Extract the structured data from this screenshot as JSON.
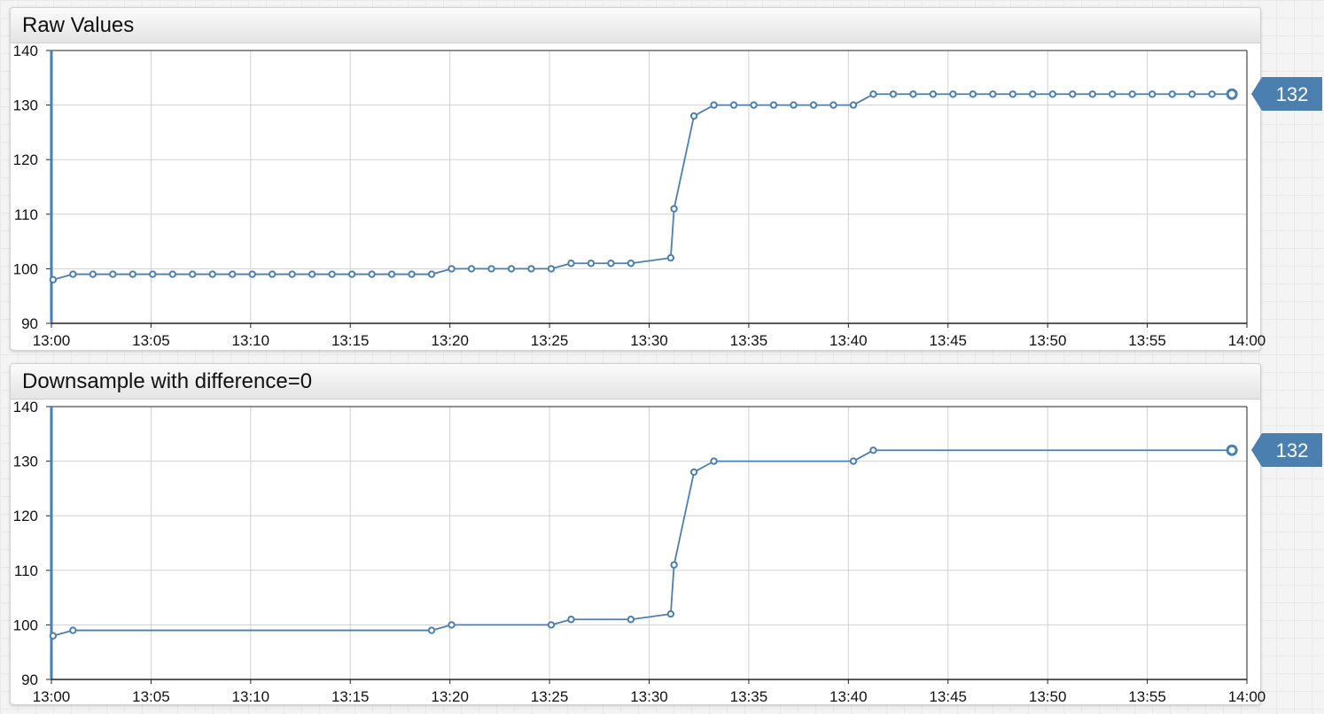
{
  "widgets": [
    {
      "title": "Raw Values",
      "last_value_label": "132",
      "chart_data": {
        "type": "line",
        "title": "Raw Values",
        "xlabel": "",
        "ylabel": "",
        "xlim": [
          "13:00",
          "14:00"
        ],
        "ylim": [
          90,
          140
        ],
        "x_ticks": [
          "13:00",
          "13:05",
          "13:10",
          "13:15",
          "13:20",
          "13:25",
          "13:30",
          "13:35",
          "13:40",
          "13:45",
          "13:50",
          "13:55",
          "14:00"
        ],
        "y_ticks": [
          "90",
          "100",
          "110",
          "120",
          "130",
          "140"
        ],
        "grid": true,
        "color": "#4a7fb0",
        "series": [
          {
            "x": [
              "13:00:05",
              "13:01:05",
              "13:02:05",
              "13:03:05",
              "13:04:05",
              "13:05:05",
              "13:06:05",
              "13:07:05",
              "13:08:05",
              "13:09:05",
              "13:10:05",
              "13:11:05",
              "13:12:05",
              "13:13:05",
              "13:14:05",
              "13:15:05",
              "13:16:05",
              "13:17:05",
              "13:18:05",
              "13:19:05",
              "13:20:05",
              "13:21:05",
              "13:22:05",
              "13:23:05",
              "13:24:05",
              "13:25:05",
              "13:26:05",
              "13:27:05",
              "13:28:05",
              "13:29:05",
              "13:31:05",
              "13:31:15",
              "13:32:15",
              "13:33:15",
              "13:34:15",
              "13:35:15",
              "13:36:15",
              "13:37:15",
              "13:38:15",
              "13:39:15",
              "13:40:15",
              "13:41:15",
              "13:42:15",
              "13:43:15",
              "13:44:15",
              "13:45:15",
              "13:46:15",
              "13:47:15",
              "13:48:15",
              "13:49:15",
              "13:50:15",
              "13:51:15",
              "13:52:15",
              "13:53:15",
              "13:54:15",
              "13:55:15",
              "13:56:15",
              "13:57:15",
              "13:58:15",
              "13:59:15"
            ],
            "values": [
              98,
              99,
              99,
              99,
              99,
              99,
              99,
              99,
              99,
              99,
              99,
              99,
              99,
              99,
              99,
              99,
              99,
              99,
              99,
              99,
              100,
              100,
              100,
              100,
              100,
              100,
              101,
              101,
              101,
              101,
              102,
              111,
              128,
              130,
              130,
              130,
              130,
              130,
              130,
              130,
              130,
              132,
              132,
              132,
              132,
              132,
              132,
              132,
              132,
              132,
              132,
              132,
              132,
              132,
              132,
              132,
              132,
              132,
              132,
              132
            ]
          }
        ]
      }
    },
    {
      "title": "Downsample with difference=0",
      "last_value_label": "132",
      "chart_data": {
        "type": "line",
        "title": "Downsample with difference=0",
        "xlabel": "",
        "ylabel": "",
        "xlim": [
          "13:00",
          "14:00"
        ],
        "ylim": [
          90,
          140
        ],
        "x_ticks": [
          "13:00",
          "13:05",
          "13:10",
          "13:15",
          "13:20",
          "13:25",
          "13:30",
          "13:35",
          "13:40",
          "13:45",
          "13:50",
          "13:55",
          "14:00"
        ],
        "y_ticks": [
          "90",
          "100",
          "110",
          "120",
          "130",
          "140"
        ],
        "grid": true,
        "color": "#4a7fb0",
        "series": [
          {
            "x": [
              "13:00:05",
              "13:01:05",
              "13:19:05",
              "13:20:05",
              "13:25:05",
              "13:26:05",
              "13:29:05",
              "13:31:05",
              "13:31:15",
              "13:32:15",
              "13:33:15",
              "13:40:15",
              "13:41:15",
              "13:59:15"
            ],
            "values": [
              98,
              99,
              99,
              100,
              100,
              101,
              101,
              102,
              111,
              128,
              130,
              130,
              132,
              132
            ]
          }
        ]
      }
    }
  ]
}
